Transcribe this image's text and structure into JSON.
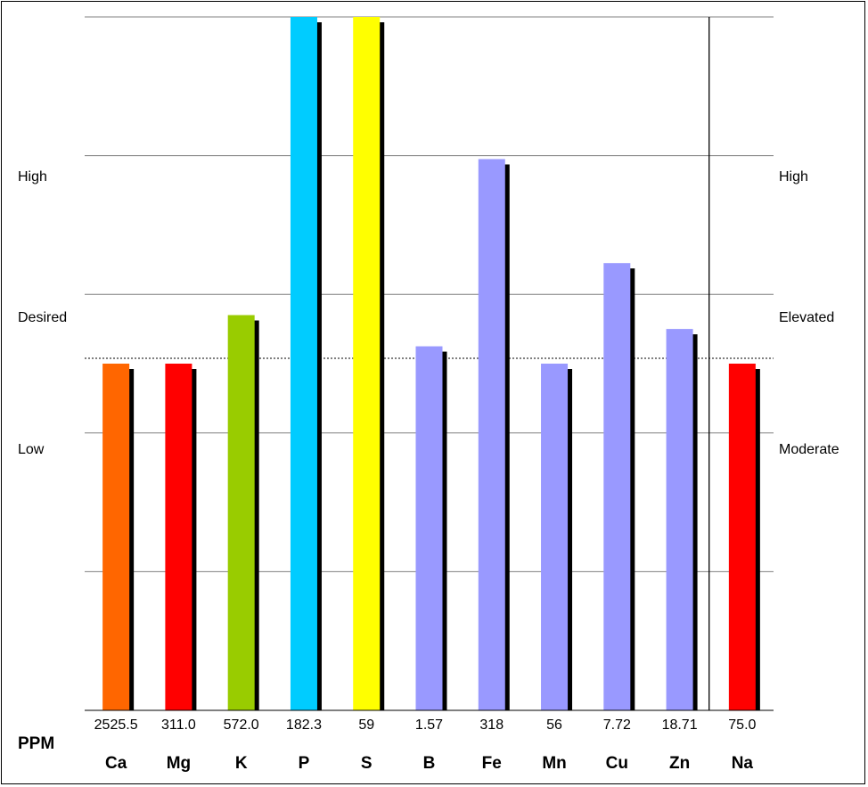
{
  "chart_data": {
    "type": "bar",
    "unit_label": "PPM",
    "categories": [
      "Ca",
      "Mg",
      "K",
      "P",
      "S",
      "B",
      "Fe",
      "Mn",
      "Cu",
      "Zn",
      "Na"
    ],
    "ppm_values": [
      "2525.5",
      "311.0",
      "572.0",
      "182.3",
      "59",
      "1.57",
      "318",
      "56",
      "7.72",
      "18.71",
      "75.0"
    ],
    "relative_levels": [
      50,
      50,
      57,
      100,
      100,
      52.5,
      79.5,
      50,
      64.5,
      55,
      50
    ],
    "level_scale": [
      0,
      100
    ],
    "desired_reference_level": 50,
    "colors": [
      "#ff6600",
      "#ff0000",
      "#99cc00",
      "#00ccff",
      "#ffff00",
      "#9999ff",
      "#9999ff",
      "#9999ff",
      "#9999ff",
      "#9999ff",
      "#ff0000"
    ],
    "left_axis_labels": {
      "top": "High",
      "middle": "Desired",
      "bottom": "Low"
    },
    "right_axis_labels": {
      "top": "High",
      "middle": "Elevated",
      "bottom": "Moderate"
    },
    "grid": true
  }
}
